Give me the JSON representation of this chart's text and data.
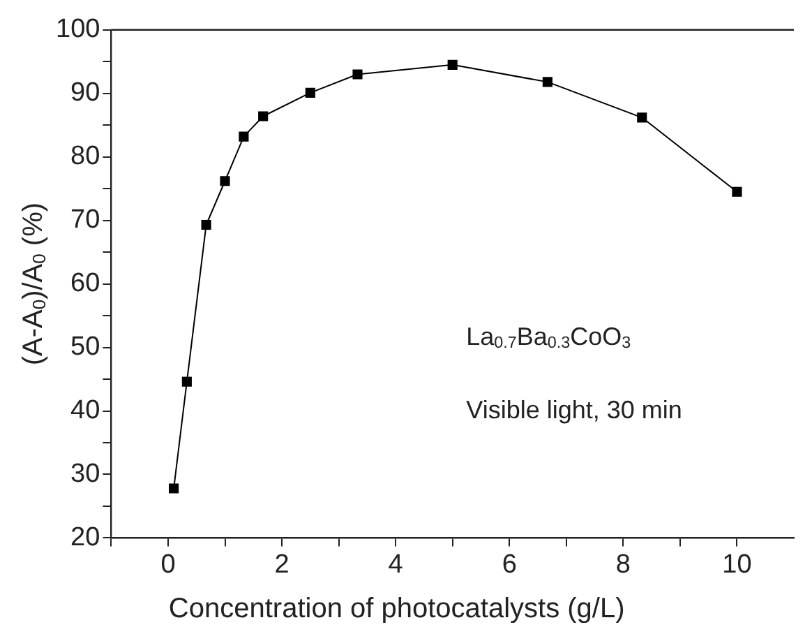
{
  "chart_data": {
    "type": "line",
    "xlabel": "Concentration of photocatalysts (g/L)",
    "ylabel": "(A-A$_{0}$)/A$_{0}$ (%)",
    "x": [
      0.1,
      0.33,
      0.67,
      1.0,
      1.33,
      1.67,
      2.5,
      3.33,
      5,
      6.67,
      8.33,
      10
    ],
    "series": [
      {
        "color": "#000000",
        "values": [
          27.8,
          44.6,
          69.3,
          76.2,
          83.2,
          86.4,
          90.1,
          93.0,
          94.5,
          91.8,
          86.2,
          74.5
        ]
      }
    ],
    "xlim": [
      -1,
      11
    ],
    "xticks": [
      {
        "value": -1,
        "label": null
      },
      0,
      {
        "value": 1,
        "label": null
      },
      2,
      {
        "value": 3,
        "label": null
      },
      4,
      {
        "value": 5,
        "label": null
      },
      6,
      {
        "value": 7,
        "label": null
      },
      8,
      {
        "value": 9,
        "label": null
      },
      10
    ],
    "ylim": [
      20,
      100
    ],
    "yticks": [
      20,
      {
        "value": 25,
        "label": null
      },
      30,
      {
        "value": 35,
        "label": null
      },
      40,
      {
        "value": 45,
        "label": null
      },
      50,
      {
        "value": 55,
        "label": null
      },
      60,
      {
        "value": 65,
        "label": null
      },
      70,
      {
        "value": 75,
        "label": null
      },
      80,
      {
        "value": 85,
        "label": null
      },
      90,
      {
        "value": 95,
        "label": null
      },
      100
    ],
    "annotations": [
      "La$_{0.7}$Ba$_{0.3}$CoO$_{3}$",
      "Visible light, 30 min"
    ],
    "grid": false,
    "legend": false,
    "marker": "square",
    "line_style": "solid"
  }
}
